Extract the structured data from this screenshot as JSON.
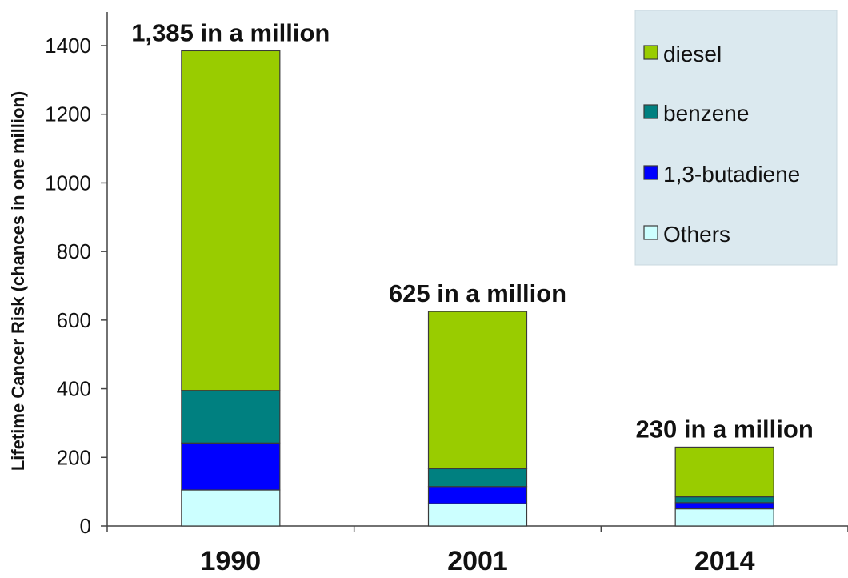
{
  "chart_data": {
    "type": "bar",
    "stacked": true,
    "categories": [
      "1990",
      "2001",
      "2014"
    ],
    "series": [
      {
        "name": "Others",
        "values": [
          105,
          65,
          50
        ],
        "color": "#ccffff"
      },
      {
        "name": "1,3-butadiene",
        "values": [
          137,
          50,
          18
        ],
        "color": "#0000ff"
      },
      {
        "name": "benzene",
        "values": [
          153,
          52,
          17
        ],
        "color": "#008080"
      },
      {
        "name": "diesel",
        "values": [
          990,
          458,
          145
        ],
        "color": "#99cc00"
      }
    ],
    "totals_labels": [
      "1,385 in a million",
      "625 in a million",
      "230 in a million"
    ],
    "ylabel": "Lifetime Cancer Risk (chances in one million)",
    "xlabel": "",
    "ylim": [
      0,
      1400
    ],
    "yticks": [
      0,
      200,
      400,
      600,
      800,
      1000,
      1200,
      1400
    ],
    "grid": false,
    "legend": {
      "placement": "top-right",
      "order": [
        "diesel",
        "benzene",
        "1,3-butadiene",
        "Others"
      ],
      "background": "#dbe9ef"
    }
  }
}
